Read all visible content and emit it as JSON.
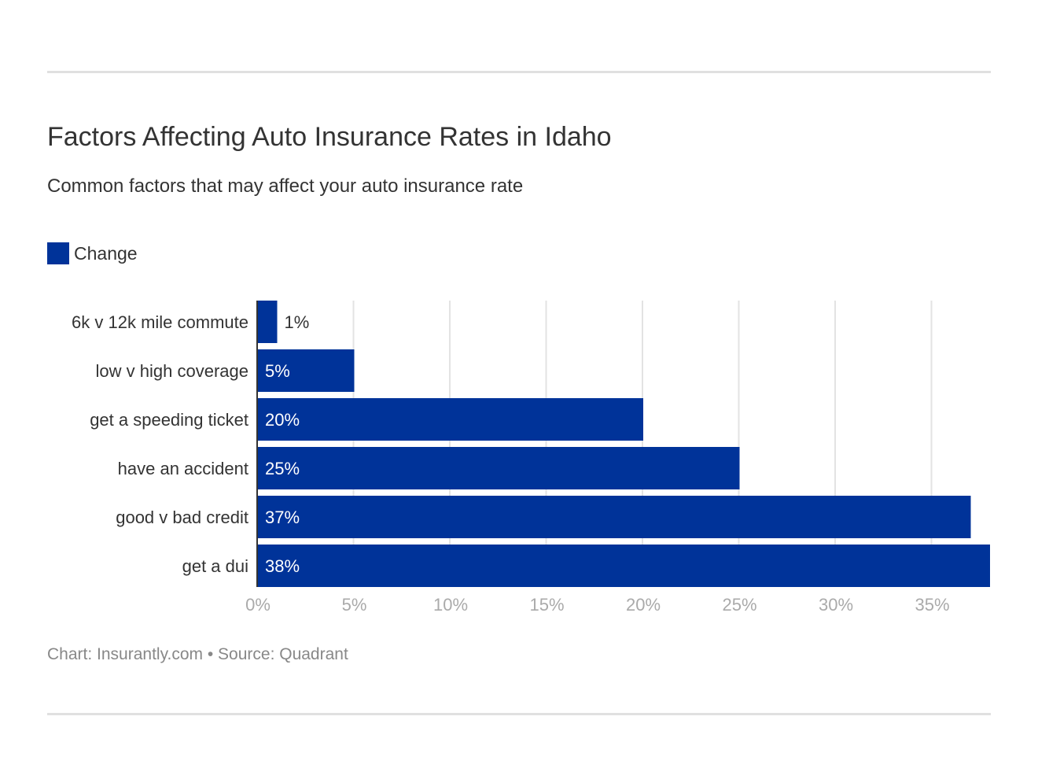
{
  "chart_data": {
    "type": "bar",
    "orientation": "horizontal",
    "title": "Factors Affecting Auto Insurance Rates in Idaho",
    "subtitle": "Common factors that may affect your auto insurance rate",
    "categories": [
      "6k v 12k mile commute",
      "low v high coverage",
      "get a speeding ticket",
      "have an accident",
      "good v bad credit",
      "get a dui"
    ],
    "series": [
      {
        "name": "Change",
        "values": [
          1,
          5,
          20,
          25,
          37,
          38
        ],
        "color": "#003399"
      }
    ],
    "value_labels": [
      "1%",
      "5%",
      "20%",
      "25%",
      "37%",
      "38%"
    ],
    "xlim": [
      0,
      38
    ],
    "xticks": [
      0,
      5,
      10,
      15,
      20,
      25,
      30,
      35
    ],
    "xtick_labels": [
      "0%",
      "5%",
      "10%",
      "15%",
      "20%",
      "25%",
      "30%",
      "35%"
    ],
    "grid": true,
    "legend": "top-left",
    "footer": "Chart: Insurantly.com • Source: Quadrant"
  }
}
